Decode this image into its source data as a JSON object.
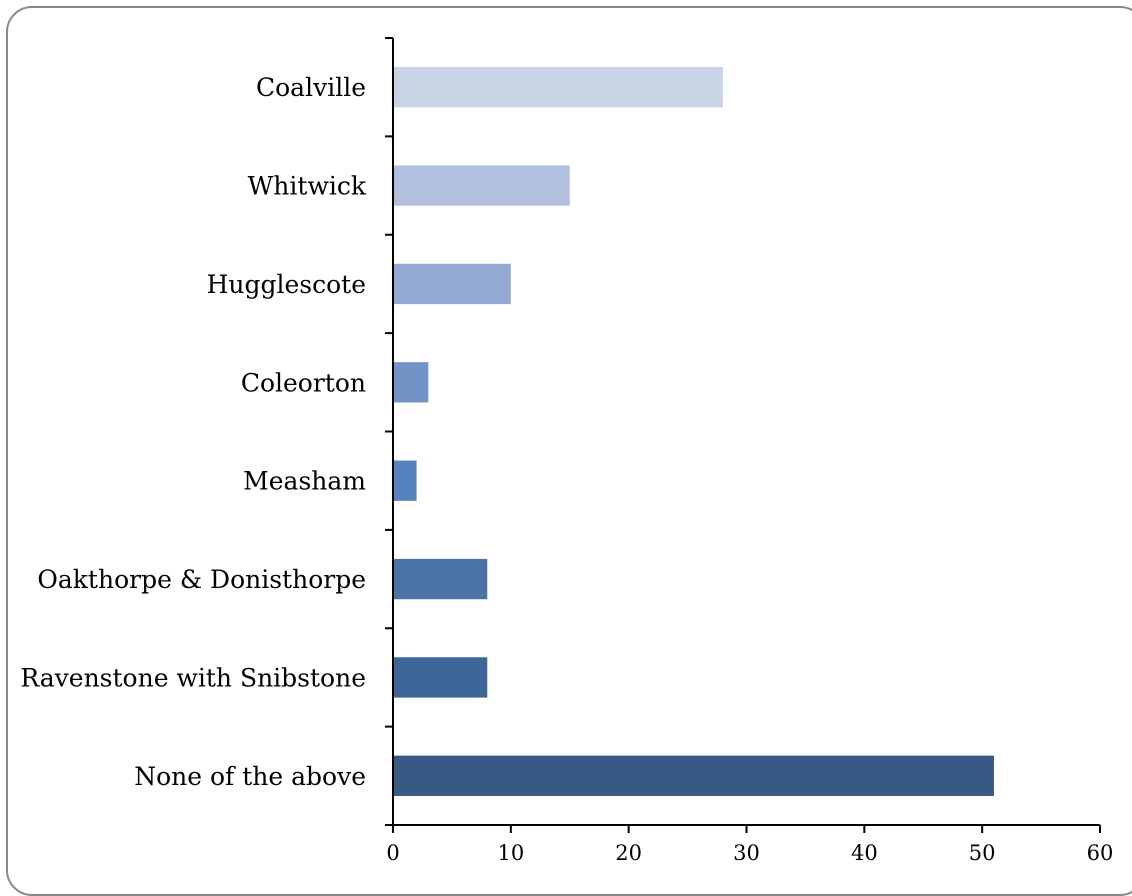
{
  "chart_data": {
    "type": "bar",
    "orientation": "horizontal",
    "categories": [
      "Coalville",
      "Whitwick",
      "Hugglescote",
      "Coleorton",
      "Measham",
      "Oakthorpe & Donisthorpe",
      "Ravenstone with Snibstone",
      "None of the above"
    ],
    "values": [
      28,
      15,
      10,
      3,
      2,
      8,
      8,
      51
    ],
    "bar_colors": [
      "#c9d3e6",
      "#b0c0dd",
      "#95aad2",
      "#7193c5",
      "#5683bd",
      "#4a72a5",
      "#3f6698",
      "#375986"
    ],
    "xlim": [
      0,
      60
    ],
    "xticks": [
      "0",
      "10",
      "20",
      "30",
      "40",
      "50",
      "60"
    ],
    "grid": false,
    "legend": false,
    "title": "",
    "xlabel": "",
    "ylabel": ""
  }
}
